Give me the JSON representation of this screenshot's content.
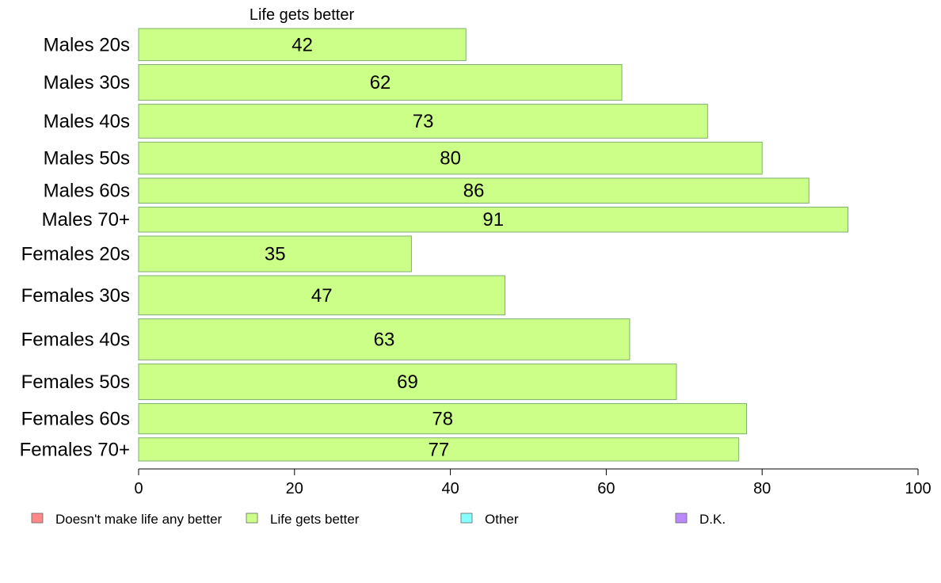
{
  "chart_data": {
    "type": "bar",
    "orientation": "horizontal",
    "series_title": "Life gets better",
    "categories": [
      "Males 20s",
      "Males 30s",
      "Males 40s",
      "Males 50s",
      "Males 60s",
      "Males 70+",
      "Females 20s",
      "Females 30s",
      "Females 40s",
      "Females 50s",
      "Females 60s",
      "Females 70+"
    ],
    "series": [
      {
        "name": "Life gets better",
        "values": [
          42,
          62,
          73,
          80,
          86,
          91,
          35,
          47,
          63,
          69,
          78,
          77
        ],
        "color": "#ccff88"
      }
    ],
    "bar_weights": [
      0.9,
      1.0,
      0.95,
      0.9,
      0.7,
      0.7,
      1.0,
      1.1,
      1.15,
      1.0,
      0.85,
      0.65
    ],
    "xlim": [
      0,
      100
    ],
    "xticks": [
      0,
      20,
      40,
      60,
      80,
      100
    ],
    "legend": {
      "placement": "bottom",
      "items": [
        {
          "label": "Doesn't make life any better",
          "color": "#ff8888"
        },
        {
          "label": "Life gets better",
          "color": "#ccff88"
        },
        {
          "label": "Other",
          "color": "#88ffff"
        },
        {
          "label": "D.K.",
          "color": "#bb88ff"
        }
      ]
    }
  }
}
